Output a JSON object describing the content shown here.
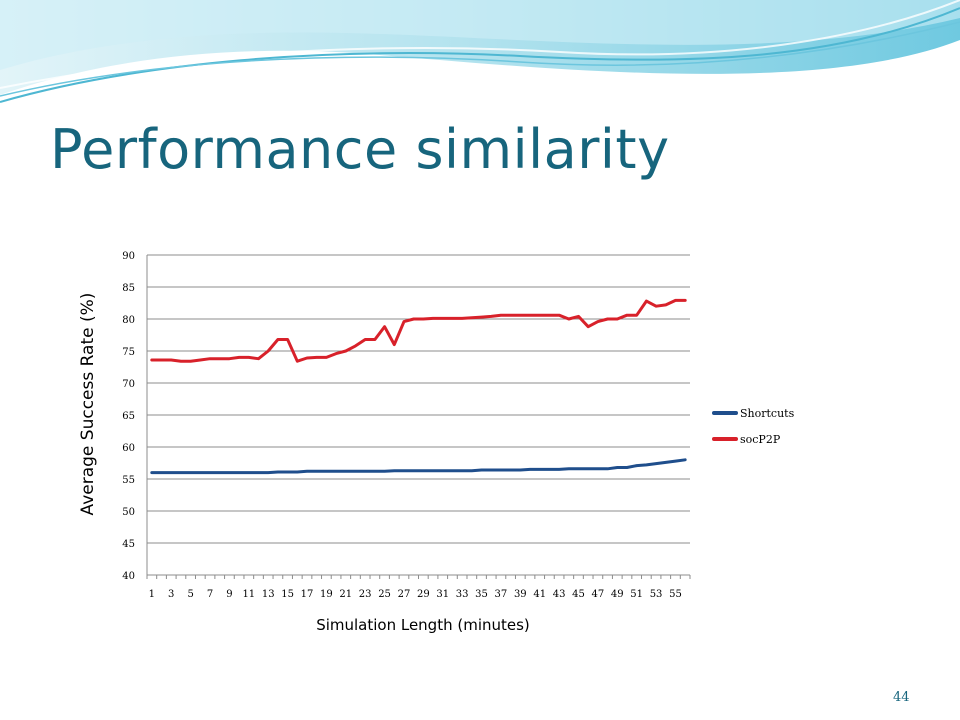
{
  "slide": {
    "title": "Performance similarity",
    "page_number": "44"
  },
  "colors": {
    "title": "#17657d",
    "shortcuts": "#1f4e8c",
    "socp2p": "#d8212a",
    "grid": "#8c8c8c"
  },
  "chart_data": {
    "type": "line",
    "ylabel": "Average Success Rate (%)",
    "xlabel": "Simulation Length (minutes)",
    "ylim": [
      40,
      90
    ],
    "yticks": [
      40,
      45,
      50,
      55,
      60,
      65,
      70,
      75,
      80,
      85,
      90
    ],
    "x_tick_labels": [
      1,
      3,
      5,
      7,
      9,
      11,
      13,
      15,
      17,
      19,
      21,
      23,
      25,
      27,
      29,
      31,
      33,
      35,
      37,
      39,
      41,
      43,
      45,
      47,
      49,
      51,
      53,
      55
    ],
    "x": [
      1,
      2,
      3,
      4,
      5,
      6,
      7,
      8,
      9,
      10,
      11,
      12,
      13,
      14,
      15,
      16,
      17,
      18,
      19,
      20,
      21,
      22,
      23,
      24,
      25,
      26,
      27,
      28,
      29,
      30,
      31,
      32,
      33,
      34,
      35,
      36,
      37,
      38,
      39,
      40,
      41,
      42,
      43,
      44,
      45,
      46,
      47,
      48,
      49,
      50,
      51,
      52,
      53,
      54,
      55,
      56
    ],
    "grid": true,
    "legend_position": "right",
    "series": [
      {
        "name": "Shortcuts",
        "values": [
          56.0,
          56.0,
          56.0,
          56.0,
          56.0,
          56.0,
          56.0,
          56.0,
          56.0,
          56.0,
          56.0,
          56.0,
          56.0,
          56.1,
          56.1,
          56.1,
          56.2,
          56.2,
          56.2,
          56.2,
          56.2,
          56.2,
          56.2,
          56.2,
          56.2,
          56.3,
          56.3,
          56.3,
          56.3,
          56.3,
          56.3,
          56.3,
          56.3,
          56.3,
          56.4,
          56.4,
          56.4,
          56.4,
          56.4,
          56.5,
          56.5,
          56.5,
          56.5,
          56.6,
          56.6,
          56.6,
          56.6,
          56.6,
          56.8,
          56.8,
          57.1,
          57.2,
          57.4,
          57.6,
          57.8,
          58.0
        ]
      },
      {
        "name": "socP2P",
        "values": [
          73.6,
          73.6,
          73.6,
          73.4,
          73.4,
          73.6,
          73.8,
          73.8,
          73.8,
          74.0,
          74.0,
          73.8,
          75.0,
          76.8,
          76.8,
          73.4,
          73.9,
          74.0,
          74.0,
          74.6,
          75.0,
          75.8,
          76.8,
          76.8,
          78.8,
          76.0,
          79.6,
          80.0,
          80.0,
          80.1,
          80.1,
          80.1,
          80.1,
          80.2,
          80.3,
          80.4,
          80.6,
          80.6,
          80.6,
          80.6,
          80.6,
          80.6,
          80.6,
          80.0,
          80.4,
          78.8,
          79.6,
          80.0,
          80.0,
          80.6,
          80.6,
          82.8,
          82.0,
          82.2,
          82.9,
          82.9
        ]
      }
    ]
  }
}
